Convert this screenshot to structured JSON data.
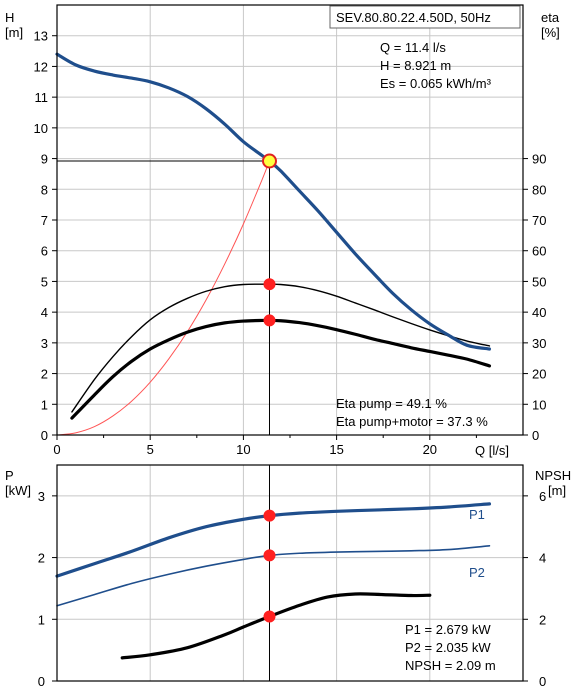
{
  "chart_data": [
    {
      "type": "line",
      "title": "SEV.80.80.22.4.50D, 50Hz",
      "xlabel": "Q [l/s]",
      "ylabel": "H\n[m]",
      "ylabel_right": "eta\n[%]",
      "xlim": [
        0,
        25
      ],
      "ylim": [
        0,
        14
      ],
      "ylim_right": [
        0,
        140
      ],
      "x_ticks": [
        "0",
        "5",
        "10",
        "15",
        "20"
      ],
      "y_ticks": [
        "0",
        "1",
        "2",
        "3",
        "4",
        "5",
        "6",
        "7",
        "8",
        "9",
        "10",
        "11",
        "12",
        "13"
      ],
      "y_ticks_right": [
        "0",
        "10",
        "20",
        "30",
        "40",
        "50",
        "60",
        "70",
        "80",
        "90"
      ],
      "grid": true,
      "colors": {
        "head": "#1f4e8c",
        "system": "#ff5555",
        "eta": "#000000",
        "marker": "#ff2020",
        "marker_yellow": "#ffff40"
      },
      "series": [
        {
          "key": "head",
          "axis": "left",
          "x": [
            0,
            1,
            2,
            3,
            4,
            5,
            6,
            7,
            8,
            9,
            10,
            11,
            11.4,
            12,
            13,
            14,
            15,
            16,
            17,
            18,
            19,
            20,
            21,
            22,
            23.2
          ],
          "values": [
            12.4,
            12.05,
            11.85,
            11.72,
            11.62,
            11.5,
            11.3,
            11.02,
            10.62,
            10.12,
            9.55,
            9.1,
            8.921,
            8.6,
            7.95,
            7.3,
            6.6,
            5.9,
            5.25,
            4.62,
            4.08,
            3.62,
            3.25,
            2.92,
            2.8
          ]
        },
        {
          "key": "system",
          "axis": "left",
          "x": [
            0,
            1,
            2,
            3,
            4,
            5,
            6,
            7,
            8,
            9,
            10,
            11,
            11.4
          ],
          "values": [
            0,
            0.07,
            0.27,
            0.62,
            1.1,
            1.72,
            2.48,
            3.37,
            4.4,
            5.57,
            6.87,
            8.31,
            8.921
          ]
        },
        {
          "key": "eta_pump",
          "axis": "right",
          "x": [
            0.8,
            2,
            3,
            4,
            5,
            6,
            7,
            8,
            9,
            10,
            11,
            11.4,
            12,
            13,
            14,
            15,
            16,
            17,
            18,
            19,
            20,
            21,
            22,
            23.2
          ],
          "values": [
            7.5,
            18,
            25.5,
            32,
            37.5,
            41.5,
            44.5,
            46.8,
            48.3,
            49,
            49.1,
            49.1,
            49,
            48.3,
            47,
            45.2,
            43,
            40.8,
            38.5,
            36.3,
            34.2,
            32.3,
            30.6,
            29
          ]
        },
        {
          "key": "eta_total",
          "axis": "right",
          "x": [
            0.8,
            2,
            3,
            4,
            5,
            6,
            7,
            8,
            9,
            10,
            11,
            11.4,
            12,
            13,
            14,
            15,
            16,
            17,
            18,
            19,
            20,
            21,
            22,
            23.2
          ],
          "values": [
            5.5,
            13,
            19,
            24,
            28,
            31,
            33.5,
            35.3,
            36.5,
            37.1,
            37.3,
            37.3,
            37.2,
            36.6,
            35.6,
            34.3,
            32.8,
            31.2,
            29.8,
            28.4,
            27.2,
            26,
            24.7,
            22.5
          ]
        }
      ],
      "markers": [
        {
          "x": 11.4,
          "y": 8.921,
          "axis": "left",
          "style": "yellow"
        },
        {
          "x": 11.4,
          "y": 49.1,
          "axis": "right",
          "style": "red"
        },
        {
          "x": 11.4,
          "y": 37.3,
          "axis": "right",
          "style": "red"
        }
      ],
      "annotations": {
        "q": "Q = 11.4 l/s",
        "h": "H = 8.921 m",
        "es": "Es = 0.065 kWh/m³",
        "eta_pump": "Eta pump = 49.1 %",
        "eta_total": "Eta pump+motor = 37.3 %"
      }
    },
    {
      "type": "line",
      "xlim": [
        0,
        25
      ],
      "ylim": [
        0,
        3.5
      ],
      "ylim_right": [
        0,
        7
      ],
      "ylabel": "P\n[kW]",
      "ylabel_right": "NPSH\n[m]",
      "y_ticks": [
        "0",
        "1",
        "2",
        "3"
      ],
      "y_ticks_right": [
        "0",
        "2",
        "4",
        "6"
      ],
      "grid": true,
      "colors": {
        "p1": "#1f4e8c",
        "p2": "#1f4e8c",
        "npsh": "#000000",
        "marker": "#ff2020"
      },
      "series": [
        {
          "key": "p1",
          "name": "P1",
          "axis": "left",
          "x": [
            0,
            2,
            4,
            6,
            8,
            10,
            11.4,
            13,
            15,
            17,
            19,
            21,
            23.2
          ],
          "values": [
            1.7,
            1.9,
            2.1,
            2.32,
            2.5,
            2.62,
            2.679,
            2.72,
            2.75,
            2.77,
            2.79,
            2.82,
            2.87
          ]
        },
        {
          "key": "p2",
          "name": "P2",
          "axis": "left",
          "x": [
            0,
            2,
            4,
            6,
            8,
            10,
            11.4,
            13,
            15,
            17,
            19,
            21,
            23.2
          ],
          "values": [
            1.22,
            1.4,
            1.58,
            1.73,
            1.86,
            1.97,
            2.035,
            2.07,
            2.09,
            2.1,
            2.11,
            2.13,
            2.19
          ]
        },
        {
          "key": "npsh",
          "axis": "right",
          "x": [
            3.5,
            5,
            7,
            9,
            10,
            11.4,
            13,
            14.5,
            16,
            17.5,
            19,
            20
          ],
          "values": [
            0.75,
            0.85,
            1.08,
            1.5,
            1.75,
            2.09,
            2.45,
            2.72,
            2.82,
            2.8,
            2.77,
            2.78
          ]
        }
      ],
      "markers": [
        {
          "x": 11.4,
          "y": 2.679,
          "axis": "left",
          "style": "red"
        },
        {
          "x": 11.4,
          "y": 2.035,
          "axis": "left",
          "style": "red"
        },
        {
          "x": 11.4,
          "y": 2.09,
          "axis": "right",
          "style": "red"
        }
      ],
      "annotations": {
        "p1": "P1 = 2.679 kW",
        "p2": "P2 = 2.035 kW",
        "npsh": "NPSH = 2.09 m"
      }
    }
  ]
}
